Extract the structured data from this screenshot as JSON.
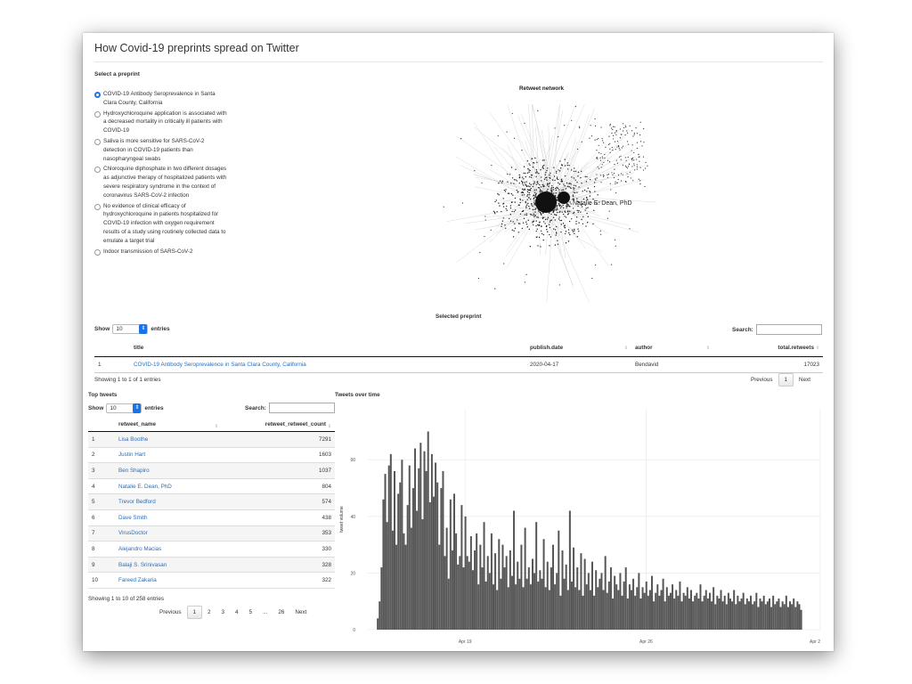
{
  "app": {
    "title": "How Covid-19 preprints spread on Twitter",
    "select_label": "Select a preprint"
  },
  "preprints": [
    {
      "label": "COVID-19 Antibody Seroprevalence in Santa Clara County, California",
      "selected": true
    },
    {
      "label": "Hydroxychloroquine application is associated with a decreased mortality in critically ill patients with COVID-19",
      "selected": false
    },
    {
      "label": "Saliva is more sensitive for SARS-CoV-2 detection in COVID-19 patients than nasopharyngeal swabs",
      "selected": false
    },
    {
      "label": "Chloroquine diphosphate in two different dosages as adjunctive therapy of hospitalized patients with severe respiratory syndrome in the context of coronavirus SARS-CoV-2 infection",
      "selected": false
    },
    {
      "label": "No evidence of clinical efficacy of hydroxychloroquine in patients hospitalized for COVID-19 infection with oxygen requirement results of a study using routinely collected data to emulate a target trial",
      "selected": false
    },
    {
      "label": "Indoor transmission of SARS-CoV-2",
      "selected": false
    }
  ],
  "network": {
    "title": "Retweet network",
    "node_label": "Natalie E. Dean, PhD"
  },
  "selected_table": {
    "title": "Selected preprint",
    "show_label": "Show",
    "entries_label": "entries",
    "page_size": "10",
    "search_label": "Search:",
    "columns": [
      "",
      "title",
      "publish.date",
      "author",
      "total.retweets"
    ],
    "rows": [
      {
        "index": "1",
        "title": "COVID-19 Antibody Seroprevalence in Santa Clara County, California",
        "publish_date": "2020-04-17",
        "author": "Bendavid",
        "total_retweets": "17023"
      }
    ],
    "info": "Showing 1 to 1 of 1 entries",
    "pager": {
      "previous": "Previous",
      "pages": [
        "1"
      ],
      "next": "Next"
    }
  },
  "top_tweets": {
    "title": "Top tweets",
    "show_label": "Show",
    "entries_label": "entries",
    "page_size": "10",
    "search_label": "Search:",
    "columns": [
      "",
      "retweet_name",
      "retweet_retweet_count"
    ],
    "rows": [
      {
        "index": "1",
        "name": "Lisa Boothe",
        "count": "7291"
      },
      {
        "index": "2",
        "name": "Justin Hart",
        "count": "1603"
      },
      {
        "index": "3",
        "name": "Ben Shapiro",
        "count": "1037"
      },
      {
        "index": "4",
        "name": "Natalie E. Dean, PhD",
        "count": "804"
      },
      {
        "index": "5",
        "name": "Trevor Bedford",
        "count": "574"
      },
      {
        "index": "6",
        "name": "Dave Smith",
        "count": "438"
      },
      {
        "index": "7",
        "name": "VirusDoctor",
        "count": "353"
      },
      {
        "index": "8",
        "name": "Alejandro Macias",
        "count": "330"
      },
      {
        "index": "9",
        "name": "Balaji S. Srinivasan",
        "count": "328"
      },
      {
        "index": "10",
        "name": "Fareed Zakaria",
        "count": "322"
      }
    ],
    "info": "Showing 1 to 10 of 258 entries",
    "pager": {
      "previous": "Previous",
      "pages": [
        "1",
        "2",
        "3",
        "4",
        "5",
        "...",
        "26"
      ],
      "next": "Next"
    }
  },
  "chart_data": {
    "type": "bar",
    "title": "Tweets over time",
    "xlabel": "",
    "ylabel": "tweet volume",
    "x_ticks": [
      "Apr 19",
      "Apr 26",
      "Apr 2"
    ],
    "y_ticks": [
      0,
      20,
      40,
      60
    ],
    "ylim": [
      0,
      78
    ],
    "bar_color": "#555555",
    "values": [
      4,
      10,
      22,
      46,
      55,
      38,
      58,
      62,
      35,
      56,
      30,
      48,
      52,
      60,
      34,
      30,
      44,
      58,
      36,
      50,
      64,
      42,
      57,
      66,
      39,
      63,
      56,
      70,
      45,
      62,
      47,
      59,
      52,
      30,
      50,
      56,
      26,
      36,
      18,
      46,
      28,
      48,
      34,
      23,
      26,
      44,
      22,
      40,
      26,
      24,
      33,
      21,
      28,
      34,
      16,
      30,
      22,
      38,
      17,
      26,
      20,
      34,
      16,
      27,
      14,
      32,
      18,
      30,
      22,
      26,
      15,
      28,
      19,
      42,
      16,
      24,
      18,
      30,
      15,
      36,
      18,
      22,
      16,
      25,
      20,
      38,
      17,
      21,
      18,
      32,
      15,
      24,
      14,
      22,
      30,
      16,
      20,
      35,
      12,
      28,
      18,
      23,
      14,
      42,
      17,
      29,
      15,
      22,
      14,
      27,
      12,
      25,
      16,
      20,
      14,
      24,
      12,
      21,
      15,
      18,
      20,
      14,
      26,
      13,
      17,
      22,
      11,
      19,
      16,
      14,
      20,
      12,
      17,
      22,
      11,
      16,
      14,
      18,
      12,
      15,
      20,
      11,
      15,
      13,
      17,
      12,
      14,
      19,
      10,
      13,
      16,
      12,
      14,
      18,
      10,
      15,
      12,
      13,
      16,
      11,
      14,
      12,
      17,
      10,
      13,
      12,
      15,
      11,
      14,
      10,
      12,
      13,
      11,
      16,
      10,
      12,
      14,
      11,
      13,
      10,
      15,
      9,
      12,
      11,
      14,
      10,
      12,
      9,
      13,
      11,
      10,
      14,
      9,
      12,
      10,
      11,
      13,
      9,
      11,
      10,
      12,
      9,
      10,
      13,
      8,
      11,
      10,
      12,
      9,
      10,
      11,
      8,
      12,
      9,
      10,
      11,
      8,
      10,
      9,
      12,
      8,
      10,
      9,
      11,
      8,
      10,
      9,
      7
    ]
  }
}
